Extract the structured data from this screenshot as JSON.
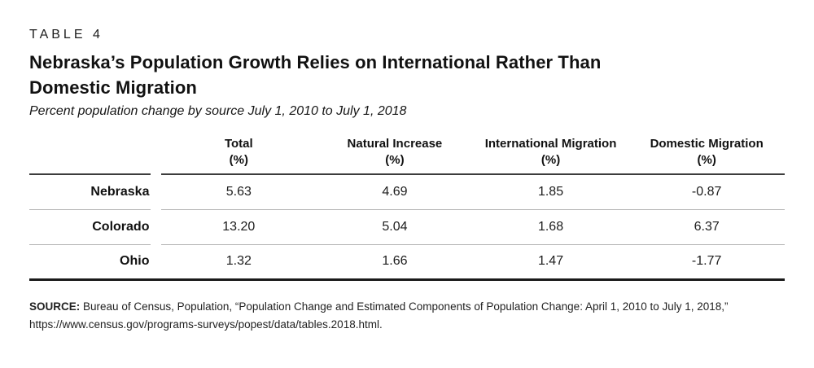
{
  "header": {
    "table_label": "TABLE 4",
    "title_line1": "Nebraska’s Population Growth Relies on International Rather Than",
    "title_line2": "Domestic Migration",
    "subtitle": "Percent population change by source July 1, 2010 to July 1, 2018"
  },
  "table": {
    "unit": "(%)",
    "columns": [
      "Total",
      "Natural Increase",
      "International Migration",
      "Domestic Migration"
    ],
    "rows": [
      {
        "label": "Nebraska",
        "values": [
          "5.63",
          "4.69",
          "1.85",
          "-0.87"
        ]
      },
      {
        "label": "Colorado",
        "values": [
          "13.20",
          "5.04",
          "1.68",
          "6.37"
        ]
      },
      {
        "label": "Ohio",
        "values": [
          "1.32",
          "1.66",
          "1.47",
          "-1.77"
        ]
      }
    ]
  },
  "source": {
    "label": "SOURCE:",
    "text": "Bureau of Census, Population, “Population Change and Estimated Components of Population Change: April 1, 2010 to July 1, 2018,”",
    "url": "https://www.census.gov/programs-surveys/popest/data/tables.2018.html."
  },
  "chart_data": {
    "type": "table",
    "title": "Nebraska’s Population Growth Relies on International Rather Than Domestic Migration",
    "subtitle": "Percent population change by source July 1, 2010 to July 1, 2018",
    "columns": [
      "State",
      "Total (%)",
      "Natural Increase (%)",
      "International Migration (%)",
      "Domestic Migration (%)"
    ],
    "rows": [
      {
        "state": "Nebraska",
        "total_pct": 5.63,
        "natural_increase_pct": 4.69,
        "international_migration_pct": 1.85,
        "domestic_migration_pct": -0.87
      },
      {
        "state": "Colorado",
        "total_pct": 13.2,
        "natural_increase_pct": 5.04,
        "international_migration_pct": 1.68,
        "domestic_migration_pct": 6.37
      },
      {
        "state": "Ohio",
        "total_pct": 1.32,
        "natural_increase_pct": 1.66,
        "international_migration_pct": 1.47,
        "domestic_migration_pct": -1.77
      }
    ],
    "source": "Bureau of Census, Population, “Population Change and Estimated Components of Population Change: April 1, 2010 to July 1, 2018,” https://www.census.gov/programs-surveys/popest/data/tables.2018.html."
  },
  "colors": {
    "text": "#1a1a1a",
    "header_rule": "#3d3d3d",
    "row_rule": "#b5b5b5",
    "bottom_rule": "#1a1a1a",
    "background": "#ffffff"
  }
}
